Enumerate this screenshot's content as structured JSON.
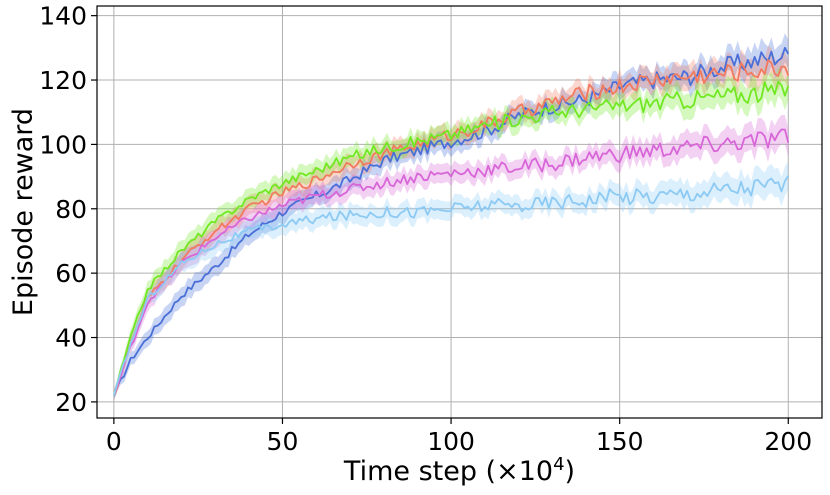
{
  "chart_data": {
    "type": "line",
    "title": "",
    "xlabel": "Time step (×10",
    "xlabel_sup": "4",
    "xlabel_close": ")",
    "ylabel": "Episode reward",
    "xlim": [
      -5,
      210
    ],
    "ylim": [
      15,
      143
    ],
    "xticks": [
      0,
      50,
      100,
      150,
      200
    ],
    "yticks": [
      20,
      40,
      60,
      80,
      100,
      120,
      140
    ],
    "grid": true,
    "legend": "none",
    "shaded_band": true,
    "series": [
      {
        "color": "#4a6fd8",
        "x": [
          0,
          5,
          10,
          20,
          30,
          40,
          50,
          60,
          70,
          80,
          90,
          100,
          110,
          120,
          130,
          140,
          150,
          160,
          170,
          180,
          190,
          200
        ],
        "y": [
          22,
          33,
          40,
          53,
          62,
          72,
          79,
          84,
          89,
          95,
          98,
          101,
          104,
          109,
          112,
          114,
          118,
          120,
          121,
          124,
          126,
          128
        ],
        "band": [
          1.5,
          2,
          2.5,
          3,
          3,
          3,
          3,
          3,
          3,
          3,
          3,
          3,
          3,
          3,
          3,
          3,
          3.5,
          3.5,
          4,
          4,
          4.5,
          4.5
        ]
      },
      {
        "color": "#f27a5f",
        "x": [
          0,
          5,
          10,
          20,
          30,
          40,
          50,
          60,
          70,
          80,
          90,
          100,
          110,
          120,
          130,
          140,
          150,
          160,
          170,
          180,
          190,
          200
        ],
        "y": [
          22,
          38,
          52,
          64,
          73,
          80,
          85,
          89,
          94,
          97,
          100,
          103,
          106,
          110,
          113,
          116,
          118,
          120,
          121,
          122,
          123,
          124
        ],
        "band": [
          1.5,
          2,
          2.5,
          3,
          3,
          3,
          3,
          3,
          3,
          3,
          3,
          3,
          3,
          3,
          3,
          3,
          3.5,
          3.5,
          4,
          4,
          4.5,
          4.5
        ]
      },
      {
        "color": "#72e823",
        "x": [
          0,
          5,
          10,
          20,
          30,
          40,
          50,
          60,
          70,
          80,
          90,
          100,
          110,
          120,
          130,
          140,
          150,
          160,
          170,
          180,
          190,
          200
        ],
        "y": [
          22,
          40,
          55,
          67,
          76,
          83,
          88,
          92,
          96,
          99,
          101,
          103,
          106,
          108,
          110,
          111,
          112,
          113,
          114,
          115,
          116,
          117
        ],
        "band": [
          1.5,
          2,
          2.5,
          3,
          3,
          3,
          3,
          3,
          3,
          3,
          3,
          3,
          3,
          3,
          3,
          3,
          3.5,
          3.5,
          4,
          4,
          4.5,
          4.5
        ]
      },
      {
        "color": "#d866d8",
        "x": [
          0,
          5,
          10,
          20,
          30,
          40,
          50,
          60,
          70,
          80,
          90,
          100,
          110,
          120,
          130,
          140,
          150,
          160,
          170,
          180,
          190,
          200
        ],
        "y": [
          22,
          37,
          51,
          63,
          71,
          77,
          81,
          84,
          86,
          88,
          90,
          91,
          92,
          93,
          94,
          96,
          97,
          98,
          99,
          100,
          101,
          102
        ],
        "band": [
          1.5,
          2,
          2.5,
          3,
          3,
          3,
          3,
          3,
          3,
          3,
          3,
          3,
          3,
          3,
          3,
          3,
          3.5,
          3.5,
          4,
          4,
          4.5,
          4.5
        ]
      },
      {
        "color": "#8ccaf4",
        "x": [
          0,
          5,
          10,
          20,
          30,
          40,
          50,
          60,
          70,
          80,
          90,
          100,
          110,
          120,
          130,
          140,
          150,
          160,
          170,
          180,
          190,
          200
        ],
        "y": [
          22,
          38,
          52,
          63,
          69,
          73,
          75,
          77,
          78,
          79,
          79,
          80,
          81,
          81,
          82,
          83,
          84,
          84,
          85,
          86,
          87,
          88
        ],
        "band": [
          1.5,
          2,
          2.5,
          3,
          3,
          3,
          3,
          3,
          3,
          3,
          3,
          3,
          3,
          3,
          3,
          3,
          3.5,
          3.5,
          4,
          4,
          4.5,
          4.5
        ]
      }
    ]
  }
}
